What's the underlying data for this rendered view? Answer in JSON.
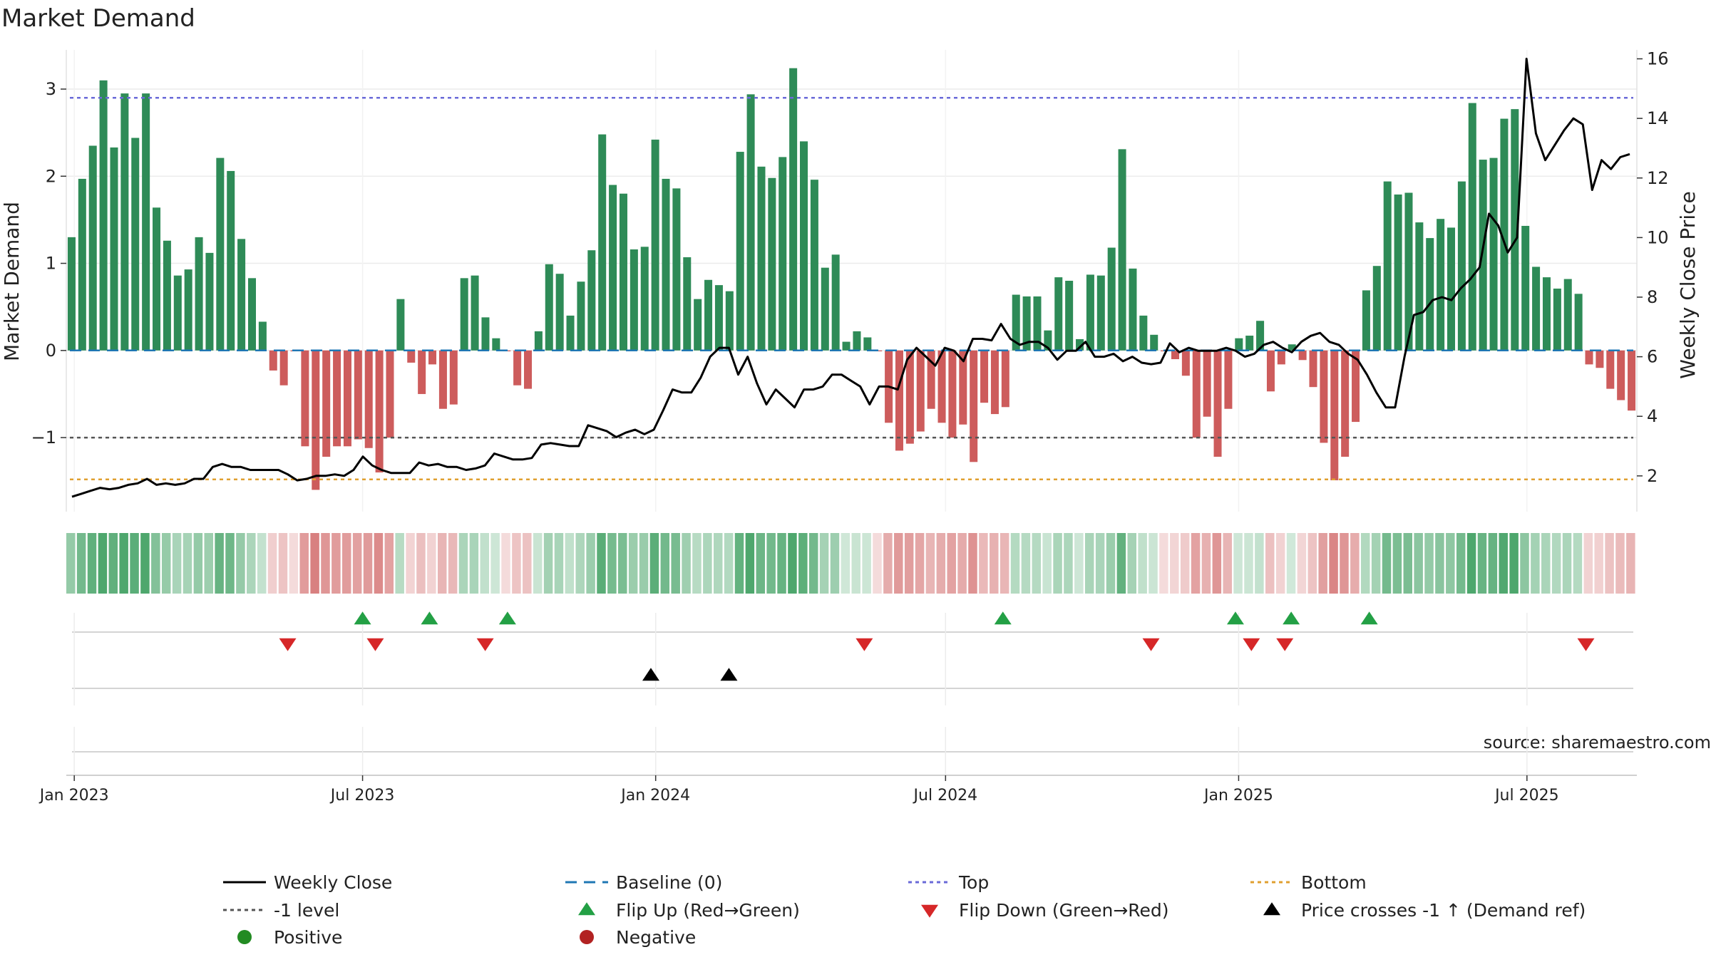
{
  "chart_data": {
    "type": "bar",
    "title": "Market Demand",
    "ylabel": "Market Demand",
    "y2label": "Weekly Close Price",
    "ylim": [
      -1.85,
      3.45
    ],
    "y2lim": [
      0.8,
      16.3
    ],
    "yticks": [
      -1,
      0,
      1,
      2,
      3
    ],
    "ytick_labels": [
      "−1",
      "0",
      "1",
      "2",
      "3"
    ],
    "y2ticks": [
      2,
      4,
      6,
      8,
      10,
      12,
      14,
      16
    ],
    "y2tick_labels": [
      "2",
      "4",
      "6",
      "8",
      "10",
      "12",
      "14",
      "16"
    ],
    "x_start": "2022-12-30",
    "x_range_days": [
      -3,
      983
    ],
    "xticks": [
      {
        "day": 2,
        "label": "Jan 2023"
      },
      {
        "day": 183,
        "label": "Jul 2023"
      },
      {
        "day": 367,
        "label": "Jan 2024"
      },
      {
        "day": 549,
        "label": "Jul 2024"
      },
      {
        "day": 733,
        "label": "Jan 2025"
      },
      {
        "day": 914,
        "label": "Jul 2025"
      }
    ],
    "reference_lines": {
      "baseline": 0,
      "top": 2.9,
      "minus_one": -1,
      "bottom": -1.48
    },
    "demand": [
      1.3,
      1.97,
      2.35,
      3.1,
      2.33,
      2.95,
      2.44,
      2.95,
      1.64,
      1.26,
      0.86,
      0.93,
      1.3,
      1.12,
      2.21,
      2.06,
      1.28,
      0.83,
      0.33,
      -0.23,
      -0.4,
      -0.01,
      -1.1,
      -1.6,
      -1.22,
      -1.1,
      -1.1,
      -1.02,
      -1.12,
      -1.4,
      -1.0,
      0.59,
      -0.14,
      -0.5,
      -0.16,
      -0.67,
      -0.62,
      0.83,
      0.86,
      0.38,
      0.14,
      -0.01,
      -0.4,
      -0.44,
      0.22,
      0.99,
      0.88,
      0.4,
      0.79,
      1.15,
      2.48,
      1.9,
      1.8,
      1.16,
      1.19,
      2.42,
      1.97,
      1.86,
      1.07,
      0.59,
      0.81,
      0.75,
      0.68,
      2.28,
      2.94,
      2.11,
      1.98,
      2.22,
      3.24,
      2.4,
      1.96,
      0.95,
      1.1,
      0.1,
      0.22,
      0.15,
      -0.01,
      -0.83,
      -1.15,
      -1.07,
      -0.93,
      -0.67,
      -0.83,
      -1.0,
      -0.85,
      -1.28,
      -0.6,
      -0.73,
      -0.65,
      0.64,
      0.62,
      0.62,
      0.23,
      0.84,
      0.8,
      0.13,
      0.87,
      0.86,
      1.18,
      2.31,
      0.94,
      0.4,
      0.18,
      -0.01,
      -0.1,
      -0.29,
      -1.0,
      -0.76,
      -1.22,
      -0.67,
      0.14,
      0.17,
      0.34,
      -0.47,
      -0.16,
      0.07,
      -0.11,
      -0.42,
      -1.06,
      -1.49,
      -1.22,
      -0.82,
      0.69,
      0.97,
      1.94,
      1.79,
      1.81,
      1.47,
      1.29,
      1.51,
      1.41,
      1.94,
      2.84,
      2.19,
      2.21,
      2.66,
      2.77,
      1.43,
      0.96,
      0.84,
      0.71,
      0.82,
      0.65,
      -0.16,
      -0.2,
      -0.44,
      -0.57,
      -0.69
    ],
    "weekly_close": [
      1.3,
      1.4,
      1.5,
      1.6,
      1.55,
      1.6,
      1.7,
      1.75,
      1.9,
      1.7,
      1.75,
      1.7,
      1.75,
      1.9,
      1.9,
      2.3,
      2.4,
      2.3,
      2.3,
      2.2,
      2.2,
      2.2,
      2.2,
      2.05,
      1.85,
      1.9,
      2.0,
      2.0,
      2.05,
      2.0,
      2.2,
      2.65,
      2.35,
      2.2,
      2.1,
      2.1,
      2.1,
      2.45,
      2.35,
      2.4,
      2.3,
      2.3,
      2.2,
      2.25,
      2.35,
      2.75,
      2.65,
      2.55,
      2.55,
      2.6,
      3.05,
      3.1,
      3.05,
      3.0,
      3.0,
      3.7,
      3.6,
      3.5,
      3.3,
      3.45,
      3.55,
      3.4,
      3.55,
      4.2,
      4.9,
      4.8,
      4.8,
      5.3,
      6.0,
      6.3,
      6.3,
      5.4,
      6.0,
      5.1,
      4.4,
      4.9,
      4.6,
      4.3,
      4.9,
      4.9,
      5.0,
      5.4,
      5.4,
      5.2,
      5.0,
      4.4,
      5.0,
      5.0,
      4.9,
      5.9,
      6.3,
      6.0,
      5.7,
      6.3,
      6.2,
      5.85,
      6.6,
      6.6,
      6.55,
      7.1,
      6.6,
      6.4,
      6.5,
      6.5,
      6.3,
      5.9,
      6.2,
      6.2,
      6.5,
      6.0,
      6.0,
      6.1,
      5.85,
      6.0,
      5.8,
      5.75,
      5.8,
      6.45,
      6.15,
      6.3,
      6.2,
      6.2,
      6.2,
      6.3,
      6.2,
      6.0,
      6.1,
      6.4,
      6.5,
      6.3,
      6.15,
      6.5,
      6.7,
      6.8,
      6.5,
      6.4,
      6.1,
      5.9,
      5.4,
      4.8,
      4.3,
      4.3,
      6.0,
      7.4,
      7.5,
      7.9,
      8.0,
      7.9,
      8.3,
      8.6,
      9.0,
      10.8,
      10.4,
      9.5,
      10.0,
      16.0,
      13.5,
      12.6,
      13.1,
      13.6,
      14.0,
      13.8,
      11.6,
      12.6,
      12.3,
      12.7,
      12.8
    ],
    "signals": {
      "flip_up_days": [
        183,
        225,
        274,
        585,
        731,
        766,
        815
      ],
      "flip_down_days": [
        136,
        191,
        260,
        498,
        678,
        741,
        762,
        951
      ],
      "price_cross_days": [
        364,
        413
      ]
    },
    "legend": {
      "weekly_close": "Weekly Close",
      "baseline": "Baseline (0)",
      "top": "Top",
      "bottom": "Bottom",
      "minus_one": "-1 level",
      "flip_up": "Flip Up (Red→Green)",
      "flip_down": "Flip Down (Green→Red)",
      "price_cross": "Price crosses -1 ↑ (Demand ref)",
      "positive": "Positive",
      "negative": "Negative"
    },
    "source": "source: sharemaestro.com",
    "colors": {
      "positive": "#2e8b57",
      "negative": "#cd5c5c",
      "close": "#000000",
      "baseline": "#1f77b4",
      "top": "#6a6ad8",
      "bottom": "#e0a030",
      "minus_one": "#555555",
      "flip_up": "#23a045",
      "flip_down": "#d62728",
      "price_cross": "#000000",
      "legend_positive": "#228b22",
      "legend_negative": "#b22222"
    }
  }
}
